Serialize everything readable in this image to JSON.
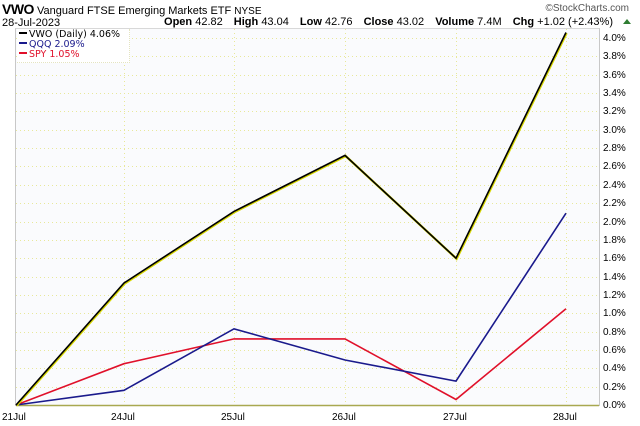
{
  "header": {
    "symbol": "VWO",
    "name": "Vanguard FTSE Emerging Markets ETF",
    "exchange": "NYSE",
    "date": "28-Jul-2023",
    "watermark": "©StockCharts.com",
    "quote": {
      "open_label": "Open",
      "open": "42.82",
      "high_label": "High",
      "high": "43.04",
      "low_label": "Low",
      "low": "42.76",
      "close_label": "Close",
      "close": "43.02",
      "volume_label": "Volume",
      "volume": "7.4M",
      "chg_label": "Chg",
      "chg": "+1.02 (+2.43%)",
      "chg_icon": "up-triangle-icon",
      "chg_color": "#2e7d32"
    }
  },
  "legend": [
    {
      "label": "VWO (Daily) 4.06%",
      "color": "#000000"
    },
    {
      "label": "QQQ 2.09%",
      "color": "#1a1a8c"
    },
    {
      "label": "SPY 1.05%",
      "color": "#e0102a"
    }
  ],
  "colors": {
    "background": "#fafbfd",
    "gridline": "#e8e89a",
    "baseline": "#a8a850",
    "vwo": "#000000",
    "vwo_shadow": "#d8d800",
    "qqq": "#1a1a8c",
    "spy": "#e0102a"
  },
  "chart_data": {
    "type": "line",
    "title": "VWO Vanguard FTSE Emerging Markets ETF NYSE",
    "subtitle": "28-Jul-2023",
    "xlabel": "",
    "ylabel": "",
    "categories": [
      "21Jul",
      "24Jul",
      "25Jul",
      "26Jul",
      "27Jul",
      "28Jul"
    ],
    "series": [
      {
        "name": "VWO (Daily)",
        "values": [
          0.0,
          1.33,
          2.11,
          2.72,
          1.6,
          4.06
        ],
        "color": "#000000"
      },
      {
        "name": "QQQ",
        "values": [
          0.0,
          0.16,
          0.83,
          0.49,
          0.26,
          2.09
        ],
        "color": "#1a1a8c"
      },
      {
        "name": "SPY",
        "values": [
          0.0,
          0.45,
          0.72,
          0.72,
          0.06,
          1.05
        ],
        "color": "#e0102a"
      }
    ],
    "ylim": [
      0.0,
      4.0
    ],
    "yticks": [
      "4.0%",
      "3.8%",
      "3.6%",
      "3.4%",
      "3.2%",
      "3.0%",
      "2.8%",
      "2.6%",
      "2.4%",
      "2.2%",
      "2.0%",
      "1.8%",
      "1.6%",
      "1.4%",
      "1.2%",
      "1.0%",
      "0.8%",
      "0.6%",
      "0.4%",
      "0.2%",
      "0.0%"
    ],
    "y_axis_position": "right",
    "grid": true,
    "legend_position": "top-left",
    "unit": "%"
  }
}
